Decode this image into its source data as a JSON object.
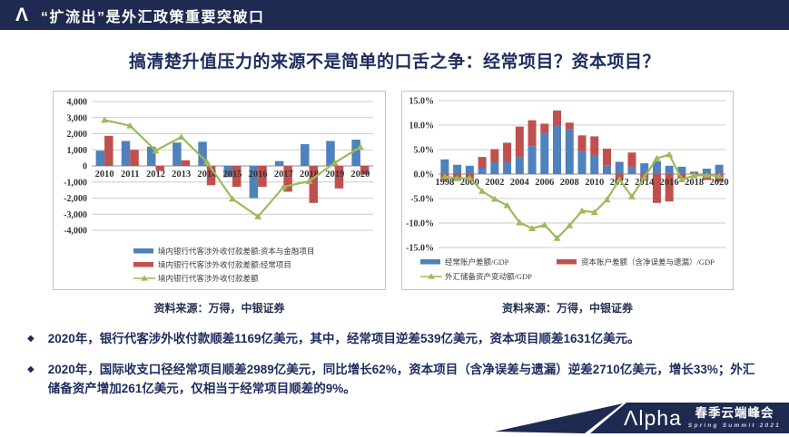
{
  "colors": {
    "navy": "#1e2a50",
    "title_text": "#1d2c5e",
    "bar_blue": "#4f81bd",
    "bar_red": "#c0504d",
    "line_green": "#9bbb59"
  },
  "header": {
    "logo_glyph": "Λ",
    "title": "“扩流出”是外汇政策重要突破口"
  },
  "slide_title": "搞清楚升值压力的来源不是简单的口舌之争：经常项目？资本项目？",
  "chart_data": [
    {
      "name": "bank-fx-receipts-payments-chart",
      "type": "bar",
      "stacked": false,
      "grid": true,
      "legend_position": "bottom-left",
      "categories": [
        "2010",
        "2011",
        "2012",
        "2013",
        "2014",
        "2015",
        "2016",
        "2017",
        "2018",
        "2019",
        "2020"
      ],
      "series": [
        {
          "name": "境内银行代客涉外收付款差额:资本与金融项目",
          "type": "bar",
          "color": "#4f81bd",
          "values": [
            950,
            1550,
            1200,
            1450,
            1500,
            -700,
            -2000,
            300,
            1350,
            1550,
            1631
          ]
        },
        {
          "name": "境内银行代客涉外收付款差额:经常项目",
          "type": "bar",
          "color": "#c0504d",
          "values": [
            1870,
            1000,
            -300,
            350,
            -1200,
            -1300,
            -1300,
            -1600,
            -2300,
            -1400,
            -539
          ]
        },
        {
          "name": "境内银行代客涉外收付款差额",
          "type": "line",
          "color": "#9bbb59",
          "marker": "triangle",
          "values": [
            2850,
            2500,
            950,
            1800,
            250,
            -2050,
            -3150,
            -1300,
            -950,
            200,
            1169
          ]
        }
      ],
      "ylim": [
        -4000,
        4000
      ],
      "ytick": 1000,
      "percent": false,
      "xtick_every": 1,
      "xlabel": "",
      "ylabel": "",
      "source": "资料来源：万得，中银证券"
    },
    {
      "name": "balance-of-payments-to-gdp-chart",
      "type": "bar",
      "stacked": true,
      "grid": true,
      "legend_position": "bottom-left",
      "categories": [
        "1998",
        "1999",
        "2000",
        "2001",
        "2002",
        "2003",
        "2004",
        "2005",
        "2006",
        "2007",
        "2008",
        "2009",
        "2010",
        "2011",
        "2012",
        "2013",
        "2014",
        "2015",
        "2016",
        "2017",
        "2018",
        "2019",
        "2020"
      ],
      "series": [
        {
          "name": "经常账户差额/GDP",
          "type": "bar",
          "color": "#4f81bd",
          "values": [
            3.0,
            1.9,
            1.7,
            1.3,
            2.4,
            2.5,
            3.5,
            5.7,
            8.4,
            10.0,
            9.2,
            4.7,
            3.9,
            1.8,
            2.5,
            1.5,
            2.2,
            2.6,
            1.7,
            1.5,
            0.3,
            1.1,
            1.9
          ]
        },
        {
          "name": "资本账户差额（含净误差与遗漏）/GDP",
          "type": "bar",
          "color": "#c0504d",
          "values": [
            -1.3,
            -1.2,
            -0.9,
            2.2,
            2.7,
            3.9,
            6.2,
            5.3,
            1.9,
            3.0,
            1.3,
            3.2,
            3.8,
            3.4,
            -1.2,
            2.9,
            -1.3,
            -5.9,
            -5.6,
            -0.9,
            0.2,
            -1.2,
            -1.6
          ]
        },
        {
          "name": "外汇储备资产变动额/GDP",
          "type": "line",
          "color": "#9bbb59",
          "marker": "triangle",
          "values": [
            -0.5,
            -0.9,
            -0.8,
            -3.5,
            -5.1,
            -6.4,
            -9.9,
            -11.1,
            -10.4,
            -13.1,
            -10.5,
            -7.5,
            -7.8,
            -5.2,
            -1.1,
            -4.6,
            -0.6,
            3.2,
            4.0,
            -1.1,
            -0.3,
            -0.2,
            -0.4
          ]
        }
      ],
      "ylim": [
        -15,
        15
      ],
      "ytick": 5,
      "percent": true,
      "xtick_every": 2,
      "xlabel": "",
      "ylabel": "",
      "source": "资料来源：万得，中银证券"
    }
  ],
  "bullet_icon": "◆",
  "bullets": [
    "2020年，银行代客涉外收付款顺差1169亿美元，其中，经常项目逆差539亿美元，资本项目顺差1631亿美元。",
    "2020年，国际收支口径经常项目顺差2989亿美元，同比增长62%，资本项目（含净误差与遗漏）逆差2710亿美元，增长33%；外汇储备资产增加261亿美元，仅相当于经常项目顺差的9%。"
  ],
  "footer": {
    "alpha": "Λlpha",
    "title_cn": "春季云端峰会",
    "subtitle_en": "Spring Summit 2021"
  }
}
